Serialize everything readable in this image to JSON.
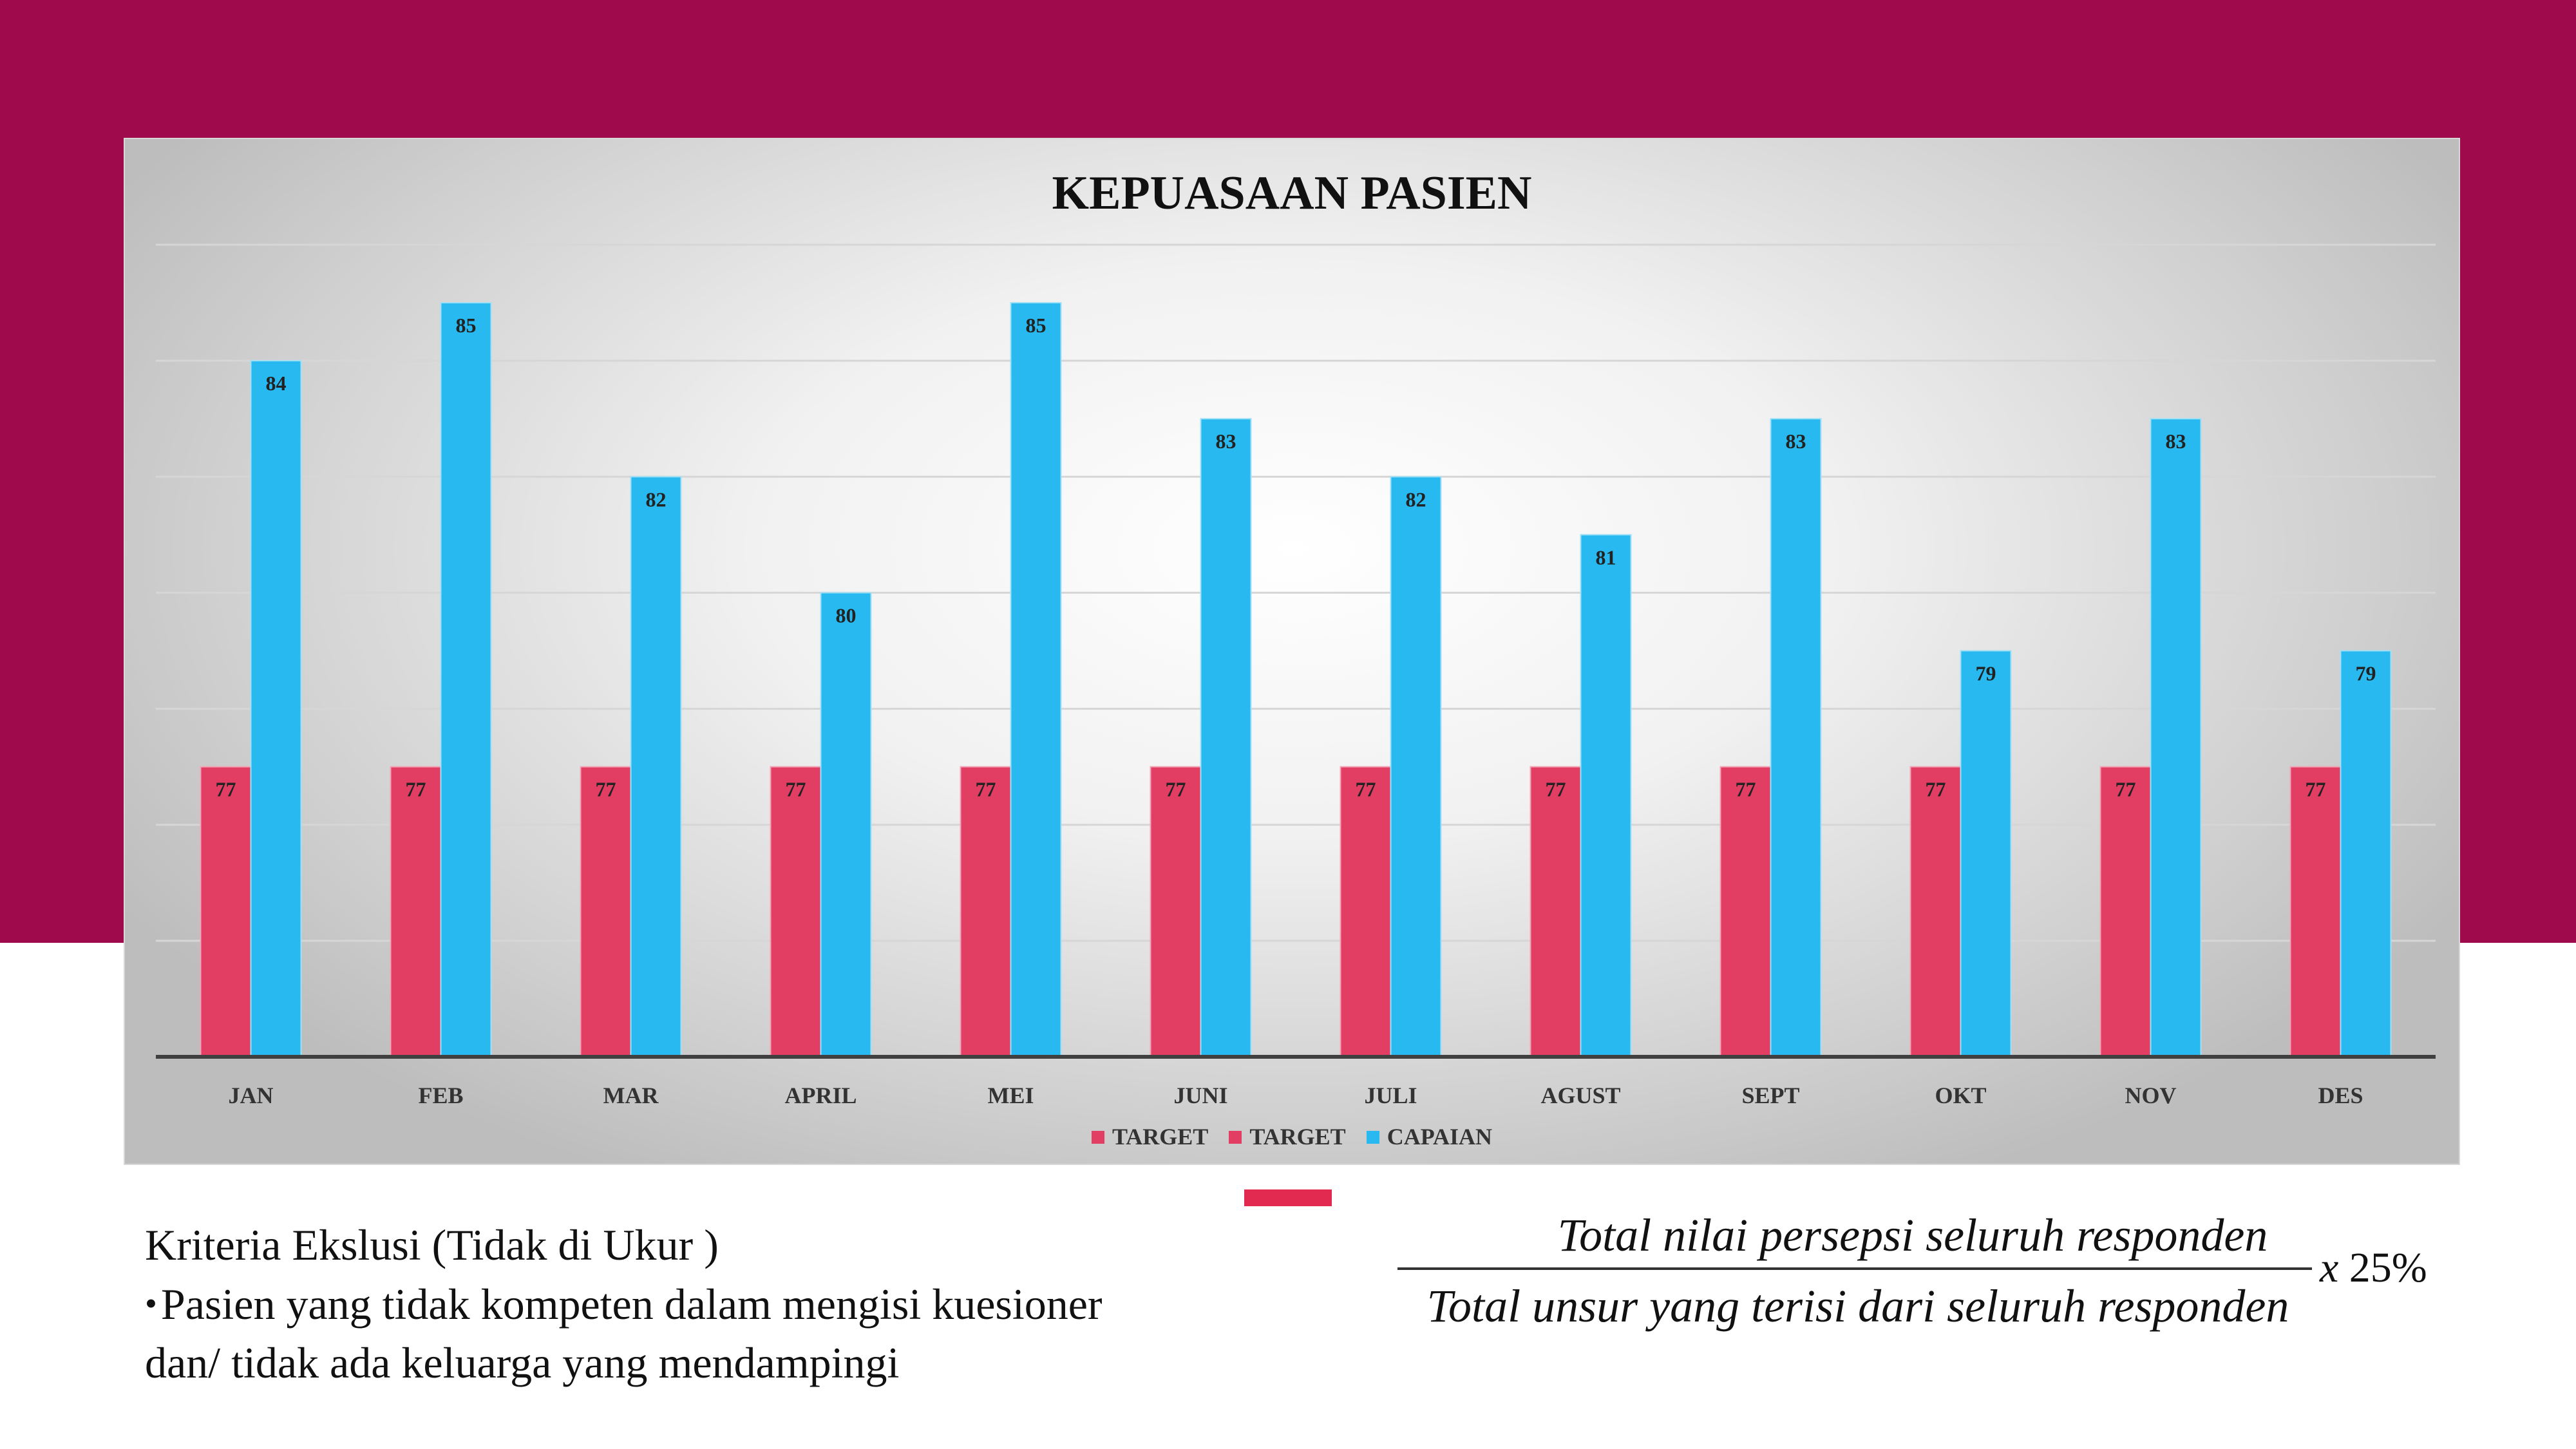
{
  "page": {
    "background_top": "#9e0a4c",
    "accent_color": "#e22a51"
  },
  "chart_data": {
    "type": "bar",
    "title": "KEPUASAAN PASIEN",
    "categories": [
      "JAN",
      "FEB",
      "MAR",
      "APRIL",
      "MEI",
      "JUNI",
      "JULI",
      "AGUST",
      "SEPT",
      "OKT",
      "NOV",
      "DES"
    ],
    "series": [
      {
        "name": "TARGET",
        "color": "#e23d63",
        "values": [
          77,
          77,
          77,
          77,
          77,
          77,
          77,
          77,
          77,
          77,
          77,
          77
        ]
      },
      {
        "name": "CAPAIAN",
        "color": "#27b9ef",
        "values": [
          84,
          85,
          82,
          80,
          85,
          83,
          82,
          81,
          83,
          79,
          83,
          79
        ]
      }
    ],
    "legend": [
      "TARGET",
      "TARGET",
      "CAPAIAN"
    ],
    "legend_colors": [
      "#e23d63",
      "#e23d63",
      "#27b9ef"
    ],
    "legend_position": "bottom",
    "ylim": [
      72,
      86
    ],
    "grid": true,
    "data_labels": true
  },
  "criteria": {
    "heading": "Kriteria Ekslusi (Tidak di Ukur )",
    "bullet": "•",
    "line1": "Pasien yang tidak kompeten dalam mengisi kuesioner",
    "line2": "dan/ tidak ada keluarga yang mendampingi"
  },
  "formula": {
    "numerator": "Total nilai persepsi seluruh responden",
    "denominator": "Total unsur yang terisi dari seluruh responden",
    "multiplier_prefix": "x ",
    "multiplier_value": "25%"
  }
}
